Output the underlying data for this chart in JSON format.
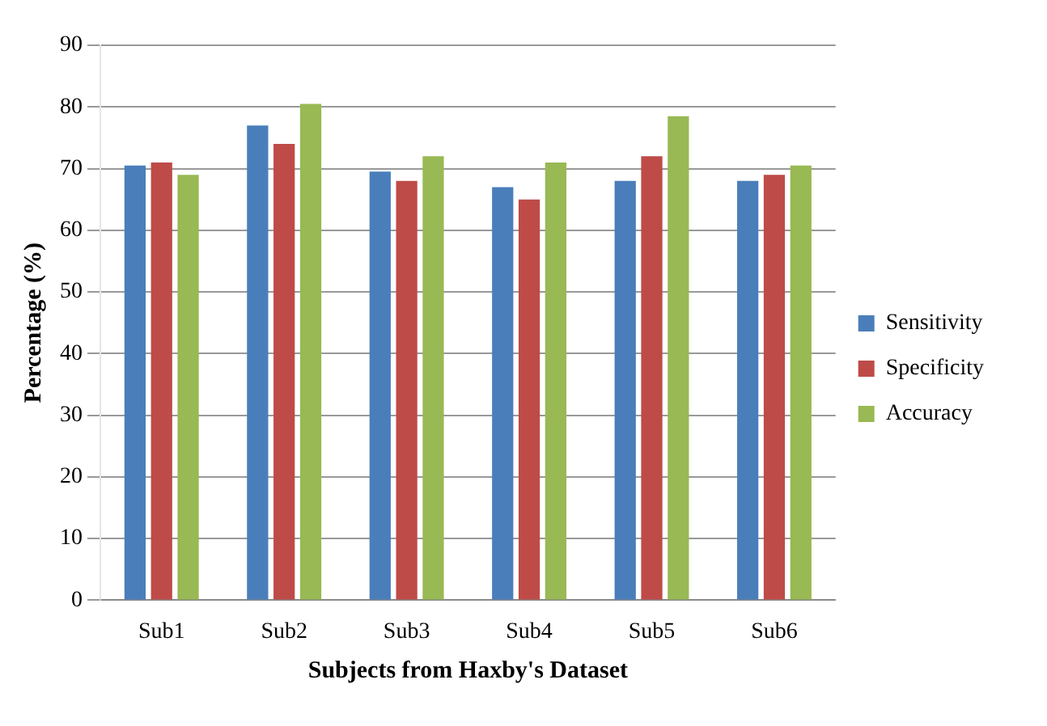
{
  "chart_data": {
    "type": "bar",
    "xlabel": "Subjects from Haxby's Dataset",
    "ylabel": "Percentage (%)",
    "categories": [
      "Sub1",
      "Sub2",
      "Sub3",
      "Sub4",
      "Sub5",
      "Sub6"
    ],
    "series": [
      {
        "name": "Sensitivity",
        "color": "#4a7ebb",
        "values": [
          70.5,
          77,
          69.5,
          67,
          68,
          68
        ]
      },
      {
        "name": "Specificity",
        "color": "#be4b48",
        "values": [
          71,
          74,
          68,
          65,
          72,
          69
        ]
      },
      {
        "name": "Accuracy",
        "color": "#98b954",
        "values": [
          69,
          80.5,
          72,
          71,
          78.5,
          70.5
        ]
      }
    ],
    "ylim": [
      0,
      90
    ],
    "yticks": [
      0,
      10,
      20,
      30,
      40,
      50,
      60,
      70,
      80,
      90
    ],
    "grid": "y",
    "legend": "right"
  }
}
